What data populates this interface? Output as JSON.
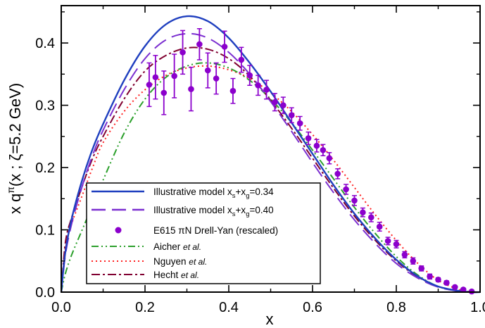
{
  "chart_data": {
    "type": "line",
    "title": "",
    "xlabel": "x",
    "ylabel": "x q^π(x ; ζ=5.2 GeV)",
    "ylabel_parts": {
      "lead": "x q",
      "sup": "π",
      "rest": "(x ; ζ=5.2 GeV)"
    },
    "xlim": [
      0.0,
      1.0
    ],
    "ylim": [
      0.0,
      0.46
    ],
    "xticks": [
      0.0,
      0.2,
      0.4,
      0.6,
      0.8,
      1.0
    ],
    "xtick_labels": [
      "0.0",
      "0.2",
      "0.4",
      "0.6",
      "0.8",
      "1.0"
    ],
    "yticks": [
      0.0,
      0.1,
      0.2,
      0.3,
      0.4
    ],
    "ytick_labels": [
      "0.0",
      "0.1",
      "0.2",
      "0.3",
      "0.4"
    ],
    "grid": false,
    "legend_position": "lower-left",
    "series": [
      {
        "name": "Illustrative model xs+xg=0.34",
        "label": {
          "main": "Illustrative model x",
          "s1": "s",
          "mid": "+x",
          "s2": "g",
          "tail": "=0.34"
        },
        "style": "solid",
        "color": "#1f3fbf",
        "x": [
          0.0,
          0.01,
          0.025,
          0.05,
          0.075,
          0.1,
          0.15,
          0.2,
          0.25,
          0.3,
          0.35,
          0.4,
          0.45,
          0.5,
          0.55,
          0.6,
          0.65,
          0.7,
          0.75,
          0.8,
          0.85,
          0.9,
          0.95,
          0.98,
          1.0
        ],
        "y": [
          0.0,
          0.065,
          0.118,
          0.18,
          0.23,
          0.27,
          0.34,
          0.395,
          0.43,
          0.443,
          0.435,
          0.408,
          0.368,
          0.322,
          0.272,
          0.222,
          0.172,
          0.126,
          0.086,
          0.052,
          0.026,
          0.009,
          0.002,
          0.0,
          0.0
        ]
      },
      {
        "name": "Illustrative model xs+xg=0.40",
        "label": {
          "main": "Illustrative model x",
          "s1": "s",
          "mid": "+x",
          "s2": "g",
          "tail": "=0.40"
        },
        "style": "longdash",
        "color": "#7b2fd0",
        "x": [
          0.0,
          0.01,
          0.025,
          0.05,
          0.075,
          0.1,
          0.15,
          0.2,
          0.25,
          0.3,
          0.35,
          0.4,
          0.45,
          0.5,
          0.55,
          0.6,
          0.65,
          0.7,
          0.75,
          0.8,
          0.85,
          0.9,
          0.95,
          0.98,
          1.0
        ],
        "y": [
          0.0,
          0.06,
          0.11,
          0.17,
          0.22,
          0.26,
          0.325,
          0.375,
          0.405,
          0.415,
          0.408,
          0.385,
          0.35,
          0.306,
          0.258,
          0.208,
          0.16,
          0.116,
          0.078,
          0.046,
          0.023,
          0.008,
          0.0015,
          0.0,
          0.0
        ]
      },
      {
        "name": "Aicher et al.",
        "label": {
          "main": "Aicher ",
          "em": "et al."
        },
        "style": "dashdotdot",
        "color": "#2ca02c",
        "x": [
          0.0,
          0.01,
          0.025,
          0.05,
          0.075,
          0.1,
          0.15,
          0.2,
          0.25,
          0.3,
          0.35,
          0.4,
          0.45,
          0.5,
          0.55,
          0.6,
          0.65,
          0.7,
          0.75,
          0.8,
          0.85,
          0.9,
          0.95,
          0.98,
          1.0
        ],
        "y": [
          0.0,
          0.03,
          0.06,
          0.1,
          0.14,
          0.18,
          0.255,
          0.31,
          0.345,
          0.363,
          0.368,
          0.36,
          0.34,
          0.31,
          0.272,
          0.228,
          0.182,
          0.136,
          0.094,
          0.057,
          0.028,
          0.009,
          0.0015,
          0.0,
          0.0
        ]
      },
      {
        "name": "Nguyen et al.",
        "label": {
          "main": "Nguyen ",
          "em": "et al."
        },
        "style": "dotted",
        "color": "#ff2020",
        "x": [
          0.0,
          0.01,
          0.025,
          0.05,
          0.075,
          0.1,
          0.15,
          0.2,
          0.25,
          0.3,
          0.35,
          0.4,
          0.45,
          0.5,
          0.55,
          0.6,
          0.65,
          0.7,
          0.75,
          0.8,
          0.85,
          0.9,
          0.95,
          0.98,
          1.0
        ],
        "y": [
          0.0,
          0.07,
          0.11,
          0.155,
          0.2,
          0.24,
          0.29,
          0.325,
          0.348,
          0.36,
          0.363,
          0.357,
          0.343,
          0.32,
          0.29,
          0.253,
          0.212,
          0.168,
          0.124,
          0.083,
          0.047,
          0.019,
          0.004,
          0.0005,
          0.0
        ]
      },
      {
        "name": "Hecht et al.",
        "label": {
          "main": "Hecht ",
          "em": "et al."
        },
        "style": "dashdot",
        "color": "#800030",
        "x": [
          0.0,
          0.01,
          0.025,
          0.05,
          0.075,
          0.1,
          0.15,
          0.2,
          0.25,
          0.3,
          0.35,
          0.4,
          0.45,
          0.5,
          0.55,
          0.6,
          0.65,
          0.7,
          0.75,
          0.8,
          0.85,
          0.9,
          0.95,
          0.98,
          1.0
        ],
        "y": [
          0.0,
          0.08,
          0.12,
          0.17,
          0.215,
          0.25,
          0.31,
          0.355,
          0.38,
          0.392,
          0.39,
          0.375,
          0.347,
          0.308,
          0.263,
          0.215,
          0.167,
          0.122,
          0.083,
          0.05,
          0.025,
          0.009,
          0.0015,
          0.0,
          0.0
        ]
      }
    ],
    "points": {
      "name": "E615 πN Drell-Yan (rescaled)",
      "label": "E615  πN Drell-Yan (rescaled)",
      "color": "#8b00cc",
      "x": [
        0.21,
        0.225,
        0.245,
        0.27,
        0.29,
        0.31,
        0.33,
        0.35,
        0.37,
        0.39,
        0.41,
        0.43,
        0.45,
        0.47,
        0.49,
        0.51,
        0.53,
        0.55,
        0.57,
        0.59,
        0.61,
        0.625,
        0.64,
        0.66,
        0.68,
        0.7,
        0.72,
        0.74,
        0.76,
        0.78,
        0.8,
        0.82,
        0.84,
        0.86,
        0.88,
        0.9,
        0.92,
        0.94,
        0.96,
        0.98
      ],
      "y": [
        0.333,
        0.345,
        0.32,
        0.347,
        0.385,
        0.326,
        0.398,
        0.356,
        0.343,
        0.394,
        0.323,
        0.373,
        0.348,
        0.332,
        0.325,
        0.305,
        0.3,
        0.284,
        0.271,
        0.247,
        0.235,
        0.228,
        0.215,
        0.19,
        0.165,
        0.147,
        0.128,
        0.12,
        0.105,
        0.082,
        0.077,
        0.06,
        0.05,
        0.038,
        0.025,
        0.02,
        0.015,
        0.008,
        0.004,
        0.001
      ],
      "err": [
        0.035,
        0.035,
        0.035,
        0.035,
        0.035,
        0.035,
        0.025,
        0.028,
        0.025,
        0.025,
        0.02,
        0.02,
        0.016,
        0.016,
        0.015,
        0.014,
        0.013,
        0.012,
        0.011,
        0.01,
        0.01,
        0.009,
        0.009,
        0.008,
        0.008,
        0.008,
        0.007,
        0.007,
        0.007,
        0.006,
        0.006,
        0.005,
        0.005,
        0.004,
        0.004,
        0.003,
        0.003,
        0.002,
        0.002,
        0.001
      ]
    }
  }
}
